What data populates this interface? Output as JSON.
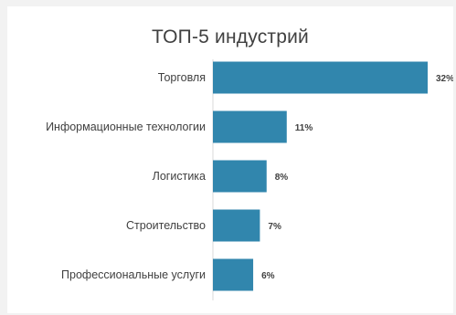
{
  "chart_data": {
    "type": "bar",
    "orientation": "horizontal",
    "title": "ТОП-5 индустрий",
    "categories": [
      "Торговля",
      "Информационные технологии",
      "Логистика",
      "Строительство",
      "Профессиональные услуги"
    ],
    "values": [
      32,
      11,
      8,
      7,
      6
    ],
    "value_labels": [
      "32%",
      "11%",
      "8%",
      "7%",
      "6%"
    ],
    "unit": "%",
    "xlim": [
      0,
      32
    ],
    "grid": false,
    "legend": "none",
    "bar_color": "#3186ad"
  }
}
